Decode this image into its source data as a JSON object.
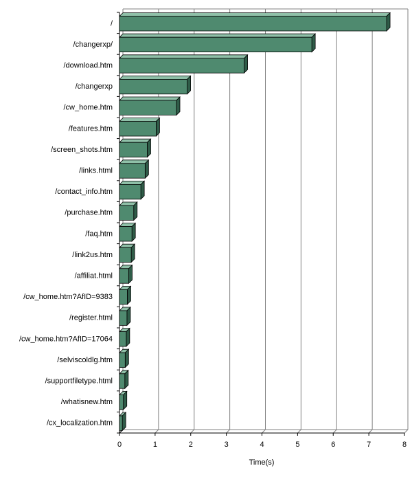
{
  "chart_data": {
    "type": "bar",
    "orientation": "horizontal",
    "style": "3d",
    "bar_color": "#4f8a6f",
    "grid": true,
    "xlabel": "Time(s)",
    "ylabel": "",
    "xlim": [
      0,
      8
    ],
    "xticks": [
      "0",
      "1",
      "2",
      "3",
      "4",
      "5",
      "6",
      "7",
      "8"
    ],
    "categories": [
      "/",
      "/changerxp/",
      "/download.htm",
      "/changerxp",
      "/cw_home.htm",
      "/features.htm",
      "/screen_shots.htm",
      "/links.html",
      "/contact_info.htm",
      "/purchase.htm",
      "/faq.htm",
      "/link2us.htm",
      "/affiliat.html",
      "/cw_home.htm?AfID=9383",
      "/register.html",
      "/cw_home.htm?AfID=17064",
      "/selviscoldlg.htm",
      "/supportfiletype.html",
      "/whatisnew.htm",
      "/cx_localization.htm"
    ],
    "values": [
      7.5,
      5.4,
      3.5,
      1.9,
      1.6,
      1.03,
      0.78,
      0.72,
      0.6,
      0.4,
      0.35,
      0.33,
      0.26,
      0.22,
      0.21,
      0.19,
      0.16,
      0.15,
      0.11,
      0.08
    ]
  }
}
